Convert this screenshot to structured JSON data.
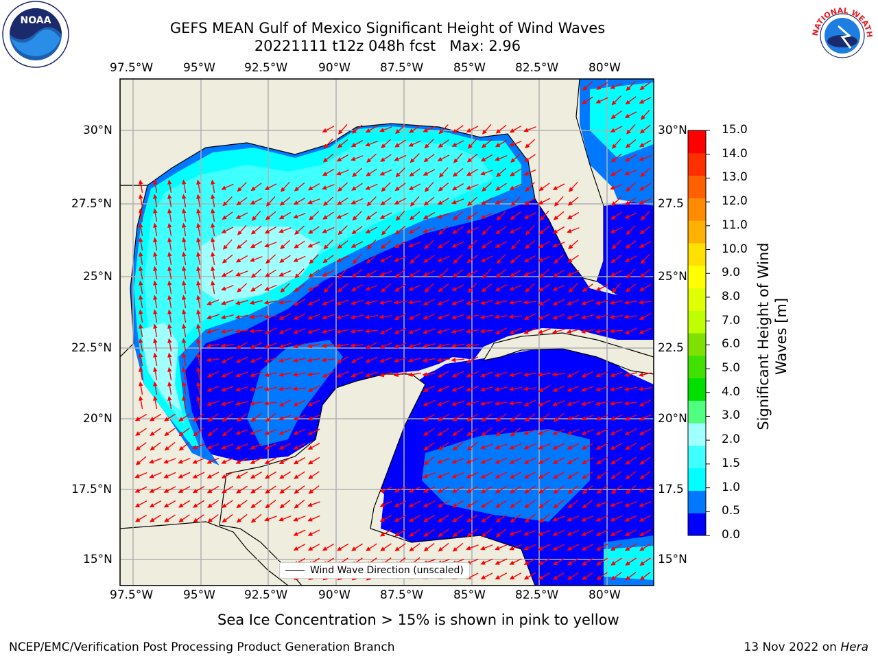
{
  "title": {
    "line1": "GEFS MEAN Gulf of Mexico Significant Height of Wind Waves",
    "line2": "20221111 t12z 048h fcst   Max: 2.96"
  },
  "map": {
    "lon_ticks": [
      "97.5°W",
      "95°W",
      "92.5°W",
      "90°W",
      "87.5°W",
      "85°W",
      "82.5°W",
      "80°W"
    ],
    "lat_ticks": [
      "30°N",
      "27.5°N",
      "25°N",
      "22.5°N",
      "20°N",
      "17.5°N",
      "15°N"
    ],
    "lat_ticks_right": [
      "30°N",
      "27.5",
      "25°N",
      "22.5",
      "20°N",
      "17.5",
      "15°N"
    ],
    "legend": "Wind Wave Direction (unscaled)",
    "colors": {
      "land": "#efedde",
      "ocean_0_05": "#0000ff",
      "ocean_05_1": "#0078ff",
      "ocean_1_15": "#00ffff",
      "ocean_15_2": "#40ffff",
      "ocean_2_3": "#a0ffff",
      "arrow": "#ff0000"
    }
  },
  "colorbar": {
    "label": "Significant Height of Wind Waves [m]",
    "ticks": [
      "15.0",
      "14.0",
      "13.0",
      "12.0",
      "11.0",
      "10.0",
      "9.0",
      "8.0",
      "7.0",
      "6.0",
      "5.0",
      "4.0",
      "3.0",
      "2.0",
      "1.5",
      "1.0",
      "0.5",
      "0.0"
    ],
    "colors": [
      "#0000ff",
      "#0078ff",
      "#00ffff",
      "#40ffff",
      "#a0ffff",
      "#50ff80",
      "#00e000",
      "#40e000",
      "#80e000",
      "#c0ff00",
      "#e0ff00",
      "#ffff00",
      "#ffe000",
      "#ffb000",
      "#ff8c00",
      "#ff6000",
      "#ff3000",
      "#ff0000"
    ]
  },
  "sea_ice_note": "Sea Ice Concentration > 15% is shown in pink to yellow",
  "footer": {
    "left": "NCEP/EMC/Verification Post Processing Product Generation Branch",
    "right_date": "13 Nov 2022 on ",
    "right_machine": "Hera"
  },
  "logos": {
    "noaa": "NOAA",
    "nws": "NATIONAL WEATHER SERVICE"
  }
}
